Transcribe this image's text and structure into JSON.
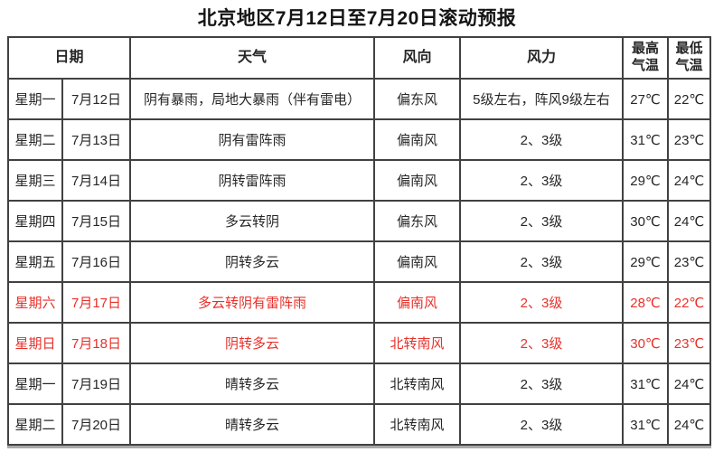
{
  "title": "北京地区7月12日至7月20日滚动预报",
  "table": {
    "headers": {
      "date": "日期",
      "weather": "天气",
      "wind_direction": "风向",
      "wind_force": "风力",
      "temp_high": "最高\n气温",
      "temp_low": "最低\n气温"
    },
    "rows": [
      {
        "weekday": "星期一",
        "date": "7月12日",
        "weather": "阴有暴雨，局地大暴雨（伴有雷电）",
        "wind_direction": "偏东风",
        "wind_force": "5级左右，阵风9级左右",
        "temp_high": "27℃",
        "temp_low": "22℃",
        "highlight": false
      },
      {
        "weekday": "星期二",
        "date": "7月13日",
        "weather": "阴有雷阵雨",
        "wind_direction": "偏南风",
        "wind_force": "2、3级",
        "temp_high": "31℃",
        "temp_low": "23℃",
        "highlight": false
      },
      {
        "weekday": "星期三",
        "date": "7月14日",
        "weather": "阴转雷阵雨",
        "wind_direction": "偏南风",
        "wind_force": "2、3级",
        "temp_high": "29℃",
        "temp_low": "24℃",
        "highlight": false
      },
      {
        "weekday": "星期四",
        "date": "7月15日",
        "weather": "多云转阴",
        "wind_direction": "偏东风",
        "wind_force": "2、3级",
        "temp_high": "30℃",
        "temp_low": "24℃",
        "highlight": false
      },
      {
        "weekday": "星期五",
        "date": "7月16日",
        "weather": "阴转多云",
        "wind_direction": "偏南风",
        "wind_force": "2、3级",
        "temp_high": "29℃",
        "temp_low": "23℃",
        "highlight": false
      },
      {
        "weekday": "星期六",
        "date": "7月17日",
        "weather": "多云转阴有雷阵雨",
        "wind_direction": "偏南风",
        "wind_force": "2、3级",
        "temp_high": "28℃",
        "temp_low": "22℃",
        "highlight": true
      },
      {
        "weekday": "星期日",
        "date": "7月18日",
        "weather": "阴转多云",
        "wind_direction": "北转南风",
        "wind_force": "2、3级",
        "temp_high": "30℃",
        "temp_low": "23℃",
        "highlight": true
      },
      {
        "weekday": "星期一",
        "date": "7月19日",
        "weather": "晴转多云",
        "wind_direction": "北转南风",
        "wind_force": "2、3级",
        "temp_high": "31℃",
        "temp_low": "24℃",
        "highlight": false
      },
      {
        "weekday": "星期二",
        "date": "7月20日",
        "weather": "晴转多云",
        "wind_direction": "北转南风",
        "wind_force": "2、3级",
        "temp_high": "31℃",
        "temp_low": "24℃",
        "highlight": false
      }
    ],
    "colors": {
      "highlight_text": "#e8302a",
      "normal_text": "#262626",
      "border": "#414141"
    }
  }
}
